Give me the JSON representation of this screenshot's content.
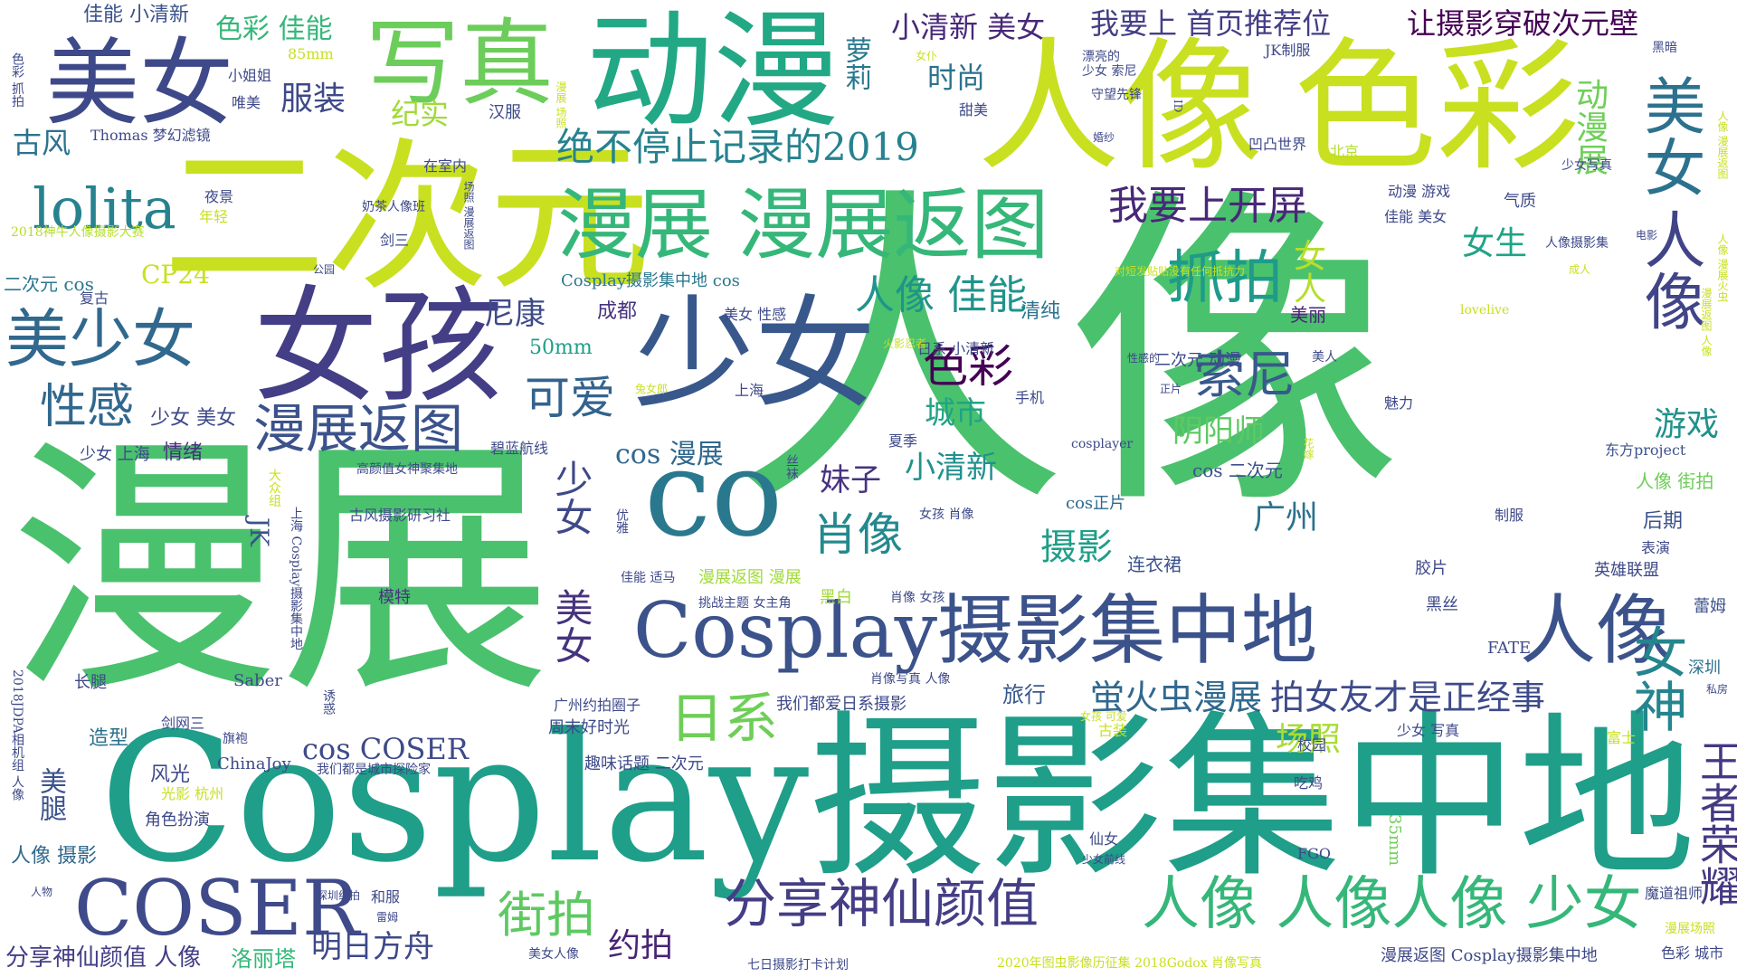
{
  "words": {
    "w001": {
      "text": "人像",
      "color": "#4ac16d"
    },
    "w002": {
      "text": "漫展",
      "color": "#4ac16d"
    },
    "w003": {
      "text": "Cosplay摄影集中地",
      "color": "#1f9e89"
    },
    "w004": {
      "text": "二次元",
      "color": "#c8e020"
    },
    "w005": {
      "text": "人像",
      "color": "#c8e020"
    },
    "w006": {
      "text": "色彩",
      "color": "#c8e020"
    },
    "w007": {
      "text": "动漫",
      "color": "#22a884"
    },
    "w008": {
      "text": "美女",
      "color": "#3e4989"
    },
    "w009": {
      "text": "写真",
      "color": "#6ccd5a"
    },
    "w010": {
      "text": "女孩",
      "color": "#433e85"
    },
    "w011": {
      "text": "少女",
      "color": "#38588c"
    },
    "w012": {
      "text": "co",
      "color": "#2a788e"
    },
    "w013": {
      "text": "Cosplay摄影集中地",
      "color": "#3b528b"
    },
    "w014": {
      "text": "人像",
      "color": "#3b528b"
    },
    "w015": {
      "text": "漫展 漫展返图",
      "color": "#35b779"
    },
    "w016": {
      "text": "美少女",
      "color": "#31688e"
    },
    "w017": {
      "text": "lolita",
      "color": "#26828e"
    },
    "w018": {
      "text": "绝不停止记录的2019",
      "color": "#26828e"
    },
    "w019": {
      "text": "美女",
      "color": "#2c728e"
    },
    "w020": {
      "text": "人像",
      "color": "#414487"
    },
    "w021": {
      "text": "COSER",
      "color": "#3e4a89"
    },
    "w022": {
      "text": "分享神仙颜值",
      "color": "#433e85"
    },
    "w023": {
      "text": "人像 人像人像 少女",
      "color": "#35b779"
    },
    "w024": {
      "text": "女神",
      "color": "#25858e"
    },
    "w025": {
      "text": "王者荣耀",
      "color": "#443983"
    },
    "w026": {
      "text": "抓拍",
      "color": "#1e9b8a"
    },
    "w027": {
      "text": "我要上开屏",
      "color": "#482878"
    },
    "w028": {
      "text": "漫展返图",
      "color": "#3b528b"
    },
    "w029": {
      "text": "性感",
      "color": "#31688e"
    },
    "w030": {
      "text": "可爱",
      "color": "#33638d"
    },
    "w031": {
      "text": "索尼",
      "color": "#38598c"
    },
    "w032": {
      "text": "色彩",
      "color": "#440154"
    },
    "w033": {
      "text": "人像 佳能",
      "color": "#1f948c"
    },
    "w034": {
      "text": "肖像",
      "color": "#23898e"
    },
    "w035": {
      "text": "日系",
      "color": "#6ece58"
    },
    "w036": {
      "text": "街拍",
      "color": "#5ec962"
    },
    "w037": {
      "text": "约拍",
      "color": "#482475"
    },
    "w038": {
      "text": "明日方舟",
      "color": "#3e4989"
    },
    "w039": {
      "text": "蛍火虫漫展",
      "color": "#31688e"
    },
    "w040": {
      "text": "拍女友才是正经事",
      "color": "#3e4a89"
    },
    "w041": {
      "text": "场照",
      "color": "#aadc32"
    },
    "w042": {
      "text": "摄影",
      "color": "#1f9e89"
    },
    "w043": {
      "text": "广州",
      "color": "#2c728e"
    },
    "w044": {
      "text": "女人",
      "color": "#b5de2b"
    },
    "w045": {
      "text": "女生",
      "color": "#20a386"
    },
    "w046": {
      "text": "游戏",
      "color": "#21918c"
    },
    "w047": {
      "text": "动漫展",
      "color": "#6ece58"
    },
    "w048": {
      "text": "萝莉",
      "color": "#2a788e"
    },
    "w049": {
      "text": "古风",
      "color": "#2c728e"
    },
    "w050": {
      "text": "服装",
      "color": "#3e4989"
    },
    "w051": {
      "text": "纪实",
      "color": "#a0da39"
    },
    "w052": {
      "text": "时尚",
      "color": "#2c728e"
    },
    "w053": {
      "text": "小清新 美女",
      "color": "#482878"
    },
    "w054": {
      "text": "我要上 首页推荐位",
      "color": "#433e85"
    },
    "w055": {
      "text": "让摄影穿破次元壁",
      "color": "#440154"
    },
    "w056": {
      "text": "色彩 佳能",
      "color": "#35b779"
    },
    "w057": {
      "text": "佳能 小清新",
      "color": "#3b528b"
    },
    "w058": {
      "text": "CP24",
      "color": "#c8e020"
    },
    "w059": {
      "text": "尼康",
      "color": "#3e4a89"
    },
    "w060": {
      "text": "50mm",
      "color": "#1f9e89"
    },
    "w061": {
      "text": "城市",
      "color": "#20a386"
    },
    "w062": {
      "text": "小清新",
      "color": "#21918c"
    },
    "w063": {
      "text": "阴阳师",
      "color": "#5ec962"
    },
    "w064": {
      "text": "妹子",
      "color": "#46337e"
    },
    "w065": {
      "text": "cos 漫展",
      "color": "#31688e"
    },
    "w066": {
      "text": "JK",
      "color": "#3b528b"
    },
    "w067": {
      "text": "少女",
      "color": "#3e4989"
    },
    "w068": {
      "text": "美女",
      "color": "#46337e"
    },
    "w069": {
      "text": "美腿",
      "color": "#3b528b"
    },
    "w070": {
      "text": "旅行",
      "color": "#38588c"
    },
    "w071": {
      "text": "cos COSER",
      "color": "#3e4a89"
    },
    "w072": {
      "text": "人像 摄影",
      "color": "#31688e"
    },
    "w073": {
      "text": "分享神仙颜值 人像",
      "color": "#433e85"
    },
    "w074": {
      "text": "洛丽塔",
      "color": "#35b779"
    },
    "w075": {
      "text": "少女 美女",
      "color": "#3e4989"
    },
    "w076": {
      "text": "少女 上海",
      "color": "#3e4989"
    },
    "w077": {
      "text": "情绪",
      "color": "#46337e"
    },
    "w078": {
      "text": "造型",
      "color": "#2c728e"
    },
    "w079": {
      "text": "风光",
      "color": "#3e4989"
    },
    "w080": {
      "text": "角色扮演",
      "color": "#3e4989"
    },
    "w081": {
      "text": "二次元 cos",
      "color": "#2a788e"
    },
    "w082": {
      "text": "成都",
      "color": "#46337e"
    },
    "w083": {
      "text": "清纯",
      "color": "#2c728e"
    },
    "w084": {
      "text": "美丽",
      "color": "#482475"
    },
    "w085": {
      "text": "后期",
      "color": "#3b528b"
    },
    "w086": {
      "text": "人像 街拍",
      "color": "#6ece58"
    },
    "w087": {
      "text": "东方project",
      "color": "#3b528b"
    },
    "w088": {
      "text": "英雄联盟",
      "color": "#3e4989"
    },
    "w089": {
      "text": "cos 二次元",
      "color": "#3b528b"
    },
    "w090": {
      "text": "cos正片",
      "color": "#31688e"
    },
    "w091": {
      "text": "连衣裙",
      "color": "#3b528b"
    },
    "w092": {
      "text": "胶片",
      "color": "#3e4989"
    },
    "w093": {
      "text": "黑丝",
      "color": "#3e4989"
    },
    "w094": {
      "text": "FATE",
      "color": "#3e4a89"
    },
    "w095": {
      "text": "蕾姆",
      "color": "#3b528b"
    },
    "w096": {
      "text": "深圳",
      "color": "#2c728e"
    },
    "w097": {
      "text": "漫展返图 漫展",
      "color": "#a0da39"
    },
    "w098": {
      "text": "黑白",
      "color": "#a0da39"
    },
    "w099": {
      "text": "模特",
      "color": "#46337e"
    },
    "w100": {
      "text": "Cosplay摄影集中地 cos",
      "color": "#2a788e"
    },
    "w101": {
      "text": "我们都爱日系摄影",
      "color": "#3e4989"
    },
    "w102": {
      "text": "广州约拍圈子",
      "color": "#3e4989"
    },
    "w103": {
      "text": "周末好时光",
      "color": "#3e4989"
    },
    "w104": {
      "text": "趣味话题 二次元",
      "color": "#3e4989"
    },
    "w105": {
      "text": "我们都是城市探险家",
      "color": "#3e4989"
    },
    "w106": {
      "text": "ChinaJoy",
      "color": "#3e4989"
    },
    "w107": {
      "text": "长腿",
      "color": "#3e4989"
    },
    "w108": {
      "text": "剑网三",
      "color": "#3e4989"
    },
    "w109": {
      "text": "旗袍",
      "color": "#3e4989"
    },
    "w110": {
      "text": "Saber",
      "color": "#3e4989"
    },
    "w111": {
      "text": "古风摄影研习社",
      "color": "#3e4989"
    },
    "w112": {
      "text": "高颜值女神聚集地",
      "color": "#3e4989"
    },
    "w113": {
      "text": "碧蓝航线",
      "color": "#3e4989"
    },
    "w114": {
      "text": "Thomas 梦幻滤镜",
      "color": "#3e4989"
    },
    "w115": {
      "text": "在室内",
      "color": "#3e4989"
    },
    "w116": {
      "text": "85mm",
      "color": "#c8e020"
    },
    "w117": {
      "text": "小姐姐",
      "color": "#3e4989"
    },
    "w118": {
      "text": "唯美",
      "color": "#3e4989"
    },
    "w119": {
      "text": "夜景",
      "color": "#3e4989"
    },
    "w120": {
      "text": "年轻",
      "color": "#c8e020"
    },
    "w121": {
      "text": "2018神牛人像摄影大赛",
      "color": "#b5de2b"
    },
    "w122": {
      "text": "奶茶人像班",
      "color": "#3e4989"
    },
    "w123": {
      "text": "剑三",
      "color": "#3e4989"
    },
    "w124": {
      "text": "公园",
      "color": "#3e4989"
    },
    "w125": {
      "text": "复古",
      "color": "#3e4989"
    },
    "w126": {
      "text": "汉服",
      "color": "#3e4989"
    },
    "w127": {
      "text": "北京",
      "color": "#b5de2b"
    },
    "w128": {
      "text": "凹凸世界",
      "color": "#3e4989"
    },
    "w129": {
      "text": "JK制服",
      "color": "#3e4989"
    },
    "w130": {
      "text": "漂亮的",
      "color": "#3e4989"
    },
    "w131": {
      "text": "少女 索尼",
      "color": "#3e4989"
    },
    "w132": {
      "text": "守望先锋",
      "color": "#3e4989"
    },
    "w133": {
      "text": "甜美",
      "color": "#3e4989"
    },
    "w134": {
      "text": "女仆",
      "color": "#c8e020"
    },
    "w135": {
      "text": "婚纱",
      "color": "#3e4989"
    },
    "w136": {
      "text": "动漫 游戏",
      "color": "#3e4989"
    },
    "w137": {
      "text": "佳能 美女",
      "color": "#3e4989"
    },
    "w138": {
      "text": "少女写真",
      "color": "#3e4989"
    },
    "w139": {
      "text": "气质",
      "color": "#3e4989"
    },
    "w140": {
      "text": "人像摄影集",
      "color": "#3e4989"
    },
    "w141": {
      "text": "电影",
      "color": "#3e4989"
    },
    "w142": {
      "text": "成人",
      "color": "#c8e020"
    },
    "w143": {
      "text": "lovelive",
      "color": "#c8e020"
    },
    "w144": {
      "text": "美人",
      "color": "#3e4989"
    },
    "w145": {
      "text": "二次元 动漫",
      "color": "#3e4989"
    },
    "w146": {
      "text": "日系 小清新",
      "color": "#3e4989"
    },
    "w147": {
      "text": "美女 性感",
      "color": "#3e4989"
    },
    "w148": {
      "text": "性感的",
      "color": "#3e4989"
    },
    "w149": {
      "text": "正片",
      "color": "#3e4989"
    },
    "w150": {
      "text": "魅力",
      "color": "#3e4989"
    },
    "w151": {
      "text": "上海",
      "color": "#3e4989"
    },
    "w152": {
      "text": "手机",
      "color": "#3e4989"
    },
    "w153": {
      "text": "夏季",
      "color": "#3e4989"
    },
    "w154": {
      "text": "cosplayer",
      "color": "#3e4989"
    },
    "w155": {
      "text": "女孩 肖像",
      "color": "#3e4989"
    },
    "w156": {
      "text": "制服",
      "color": "#3e4989"
    },
    "w157": {
      "text": "表演",
      "color": "#3e4989"
    },
    "w158": {
      "text": "佳能 适马",
      "color": "#3e4989"
    },
    "w159": {
      "text": "挑战主题 女主角",
      "color": "#3e4989"
    },
    "w160": {
      "text": "肖像 女孩",
      "color": "#3e4989"
    },
    "w161": {
      "text": "肖像写真 人像",
      "color": "#3e4989"
    },
    "w162": {
      "text": "女孩 可爱",
      "color": "#c8e020"
    },
    "w163": {
      "text": "少女 写真",
      "color": "#3e4989"
    },
    "w164": {
      "text": "古装",
      "color": "#c8e020"
    },
    "w165": {
      "text": "校园",
      "color": "#3e4989"
    },
    "w166": {
      "text": "富士",
      "color": "#c8e020"
    },
    "w167": {
      "text": "吃鸡",
      "color": "#3e4989"
    },
    "w168": {
      "text": "仙女",
      "color": "#3e4989"
    },
    "w169": {
      "text": "FGO",
      "color": "#3e4989"
    },
    "w170": {
      "text": "少女前线",
      "color": "#3e4989"
    },
    "w171": {
      "text": "魔道祖师",
      "color": "#3e4989"
    },
    "w172": {
      "text": "漫展场照",
      "color": "#c8e020"
    },
    "w173": {
      "text": "色彩 城市",
      "color": "#3e4989"
    },
    "w174": {
      "text": "漫展返图 Cosplay摄影集中地",
      "color": "#3e4989"
    },
    "w175": {
      "text": "2020年图虫影像历征集 2018Godox 肖像写真",
      "color": "#c8e020"
    },
    "w176": {
      "text": "七日摄影打卡计划",
      "color": "#3e4989"
    },
    "w177": {
      "text": "美女人像",
      "color": "#3e4989"
    },
    "w178": {
      "text": "雷姆",
      "color": "#3e4989"
    },
    "w179": {
      "text": "和服",
      "color": "#3e4989"
    },
    "w180": {
      "text": "深圳约拍",
      "color": "#3e4989"
    },
    "w181": {
      "text": "人物",
      "color": "#3e4989"
    },
    "w182": {
      "text": "光影 杭州",
      "color": "#c8e020"
    },
    "w183": {
      "text": "黑暗",
      "color": "#3e4989"
    },
    "w184": {
      "text": "私房",
      "color": "#3e4989"
    },
    "w185": {
      "text": "色彩 抓拍",
      "color": "#3e4989"
    },
    "w186": {
      "text": "对短发贴贴没有任何抵抗力",
      "color": "#c8e020"
    },
    "w187": {
      "text": "火影忍者",
      "color": "#c8e020"
    },
    "w188": {
      "text": "兔女郎",
      "color": "#c8e020"
    },
    "w189": {
      "text": "花嫁",
      "color": "#c8e020"
    },
    "w190": {
      "text": "丝袜",
      "color": "#3e4989"
    },
    "w191": {
      "text": "优雅",
      "color": "#3e4989"
    },
    "w192": {
      "text": "诱惑",
      "color": "#3e4989"
    },
    "w193": {
      "text": "大众组",
      "color": "#c8e020"
    },
    "w194": {
      "text": "上海 Cosplay摄影集中地",
      "color": "#3e4989"
    },
    "w195": {
      "text": "2018JDPA相机组 人像",
      "color": "#3e4989"
    },
    "w196": {
      "text": "人像 漫展返图",
      "color": "#c8e020"
    },
    "w197": {
      "text": "漫展返图 人像",
      "color": "#c8e020"
    },
    "w198": {
      "text": "人像 漫展火虫",
      "color": "#c8e020"
    },
    "w199": {
      "text": "场照 漫展返图",
      "color": "#3e4989"
    },
    "w200": {
      "text": "漫展 场照",
      "color": "#c8e020"
    },
    "w201": {
      "text": "35mm",
      "color": "#6ece58"
    },
    "w202": {
      "text": "ID",
      "color": "#3e4989"
    }
  }
}
